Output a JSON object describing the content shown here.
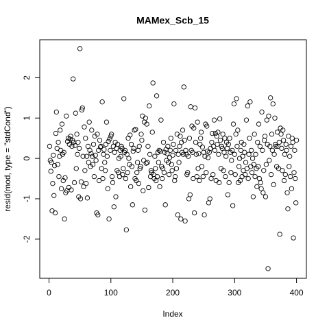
{
  "chart_data": {
    "type": "scatter",
    "title": "MAMex_Scb_15",
    "x_label": "Index",
    "y_label": "resid(mod, type = \"stdCond\")",
    "x": [
      1,
      2,
      3,
      4,
      5,
      6,
      7,
      8,
      9,
      10,
      11,
      12,
      13,
      14,
      15,
      16,
      17,
      18,
      19,
      20,
      21,
      22,
      23,
      24,
      25,
      26,
      27,
      28,
      29,
      30,
      31,
      32,
      33,
      34,
      35,
      36,
      37,
      38,
      39,
      40,
      41,
      42,
      43,
      44,
      45,
      46,
      47,
      48,
      49,
      50,
      51,
      52,
      53,
      54,
      55,
      56,
      57,
      58,
      59,
      60,
      61,
      62,
      63,
      64,
      65,
      66,
      67,
      68,
      69,
      70,
      71,
      72,
      73,
      74,
      75,
      76,
      77,
      78,
      79,
      80,
      81,
      82,
      83,
      84,
      85,
      86,
      87,
      88,
      89,
      90,
      91,
      92,
      93,
      94,
      95,
      96,
      97,
      98,
      99,
      100,
      101,
      102,
      103,
      104,
      105,
      106,
      107,
      108,
      109,
      110,
      111,
      112,
      113,
      114,
      115,
      116,
      117,
      118,
      119,
      120,
      121,
      122,
      123,
      124,
      125,
      126,
      127,
      128,
      129,
      130,
      131,
      132,
      133,
      134,
      135,
      136,
      137,
      138,
      139,
      140,
      141,
      142,
      143,
      144,
      145,
      146,
      147,
      148,
      149,
      150,
      151,
      152,
      153,
      154,
      155,
      156,
      157,
      158,
      159,
      160,
      161,
      162,
      163,
      164,
      165,
      166,
      167,
      168,
      169,
      170,
      171,
      172,
      173,
      174,
      175,
      176,
      177,
      178,
      179,
      180,
      181,
      182,
      183,
      184,
      185,
      186,
      187,
      188,
      189,
      190,
      191,
      192,
      193,
      194,
      195,
      196,
      197,
      198,
      199,
      200,
      201,
      202,
      203,
      204,
      205,
      206,
      207,
      208,
      209,
      210,
      211,
      212,
      213,
      214,
      215,
      216,
      217,
      218,
      219,
      220,
      221,
      222,
      223,
      224,
      225,
      226,
      227,
      228,
      229,
      230,
      231,
      232,
      233,
      234,
      235,
      236,
      237,
      238,
      239,
      240,
      241,
      242,
      243,
      244,
      245,
      246,
      247,
      248,
      249,
      250,
      251,
      252,
      253,
      254,
      255,
      256,
      257,
      258,
      259,
      260,
      261,
      262,
      263,
      264,
      265,
      266,
      267,
      268,
      269,
      270,
      271,
      272,
      273,
      274,
      275,
      276,
      277,
      278,
      279,
      280,
      281,
      282,
      283,
      284,
      285,
      286,
      287,
      288,
      289,
      290,
      291,
      292,
      293,
      294,
      295,
      296,
      297,
      298,
      299,
      300,
      301,
      302,
      303,
      304,
      305,
      306,
      307,
      308,
      309,
      310,
      311,
      312,
      313,
      314,
      315,
      316,
      317,
      318,
      319,
      320,
      321,
      322,
      323,
      324,
      325,
      326,
      327,
      328,
      329,
      330,
      331,
      332,
      333,
      334,
      335,
      336,
      337,
      338,
      339,
      340,
      341,
      342,
      343,
      344,
      345,
      346,
      347,
      348,
      349,
      350,
      351,
      352,
      353,
      354,
      355,
      356,
      357,
      358,
      359,
      360,
      361,
      362,
      363,
      364,
      365,
      366,
      367,
      368,
      369,
      370,
      371,
      372,
      373,
      374,
      375,
      376,
      377,
      378,
      379,
      380,
      381,
      382,
      383,
      384,
      385,
      386,
      387,
      388,
      389,
      390,
      391,
      392,
      393,
      394,
      395,
      396,
      397,
      398,
      399,
      400
    ],
    "values": [
      0.3,
      -0.05,
      -0.32,
      -0.1,
      -1.3,
      -0.62,
      0.08,
      -0.92,
      -0.18,
      -1.35,
      0.62,
      1.15,
      0.25,
      -0.15,
      0.4,
      -0.45,
      0.05,
      0.7,
      0.2,
      -0.75,
      0.85,
      0.1,
      -0.55,
      0.15,
      -1.5,
      -0.48,
      -0.85,
      1.05,
      -0.8,
      0.42,
      0.5,
      -0.72,
      0.35,
      0.48,
      0.55,
      -0.78,
      0.3,
      0.45,
      1.97,
      0.4,
      -0.6,
      0.32,
      1.12,
      -0.25,
      0.6,
      0.1,
      0.4,
      -0.95,
      0.25,
      2.72,
      -1.0,
      -0.58,
      1.2,
      1.25,
      0.05,
      -0.7,
      0.78,
      -0.3,
      0.5,
      -0.62,
      0.05,
      -0.98,
      0.3,
      -0.1,
      0.9,
      0.2,
      -0.2,
      0.12,
      0.7,
      0.05,
      -0.15,
      0.35,
      -0.45,
      0.55,
      0.08,
      -0.05,
      -1.35,
      0.6,
      -1.4,
      0.2,
      -0.55,
      0.45,
      0.28,
      0.3,
      -0.25,
      1.4,
      -0.5,
      0.1,
      0.22,
      -0.1,
      -0.3,
      0.35,
      0.9,
      0.05,
      -0.75,
      0.42,
      -1.5,
      0.48,
      0.2,
      0.55,
      0.6,
      -0.45,
      -0.6,
      0.3,
      -1.2,
      0.15,
      0.4,
      -0.95,
      0.25,
      -0.3,
      0.35,
      -0.35,
      0.0,
      -0.45,
      0.2,
      0.05,
      0.3,
      0.25,
      -0.4,
      -0.25,
      1.48,
      0.15,
      0.2,
      -0.5,
      -1.77,
      0.1,
      -0.35,
      0.5,
      0.0,
      -0.15,
      0.58,
      -0.7,
      0.35,
      -0.2,
      -1.15,
      0.18,
      0.25,
      0.7,
      -0.5,
      0.72,
      -0.55,
      -0.35,
      -0.1,
      0.2,
      -0.62,
      0.3,
      -0.25,
      -0.2,
      0.6,
      0.45,
      1.05,
      -0.8,
      -0.05,
      0.9,
      -1.28,
      1.0,
      -0.12,
      0.85,
      -0.1,
      0.3,
      -0.72,
      1.3,
      0.1,
      -0.45,
      -0.3,
      -0.35,
      0.65,
      1.87,
      -0.4,
      -0.5,
      0.05,
      -0.25,
      -0.55,
      1.55,
      -0.45,
      0.15,
      -0.1,
      0.2,
      -0.7,
      0.18,
      0.95,
      -0.2,
      -0.5,
      -0.25,
      0.4,
      -0.35,
      0.15,
      -1.15,
      0.22,
      -0.05,
      0.12,
      0.3,
      -0.1,
      -0.4,
      0.02,
      0.2,
      0.5,
      -0.15,
      -0.3,
      0.08,
      0.35,
      1.35,
      -0.55,
      -0.45,
      0.2,
      -0.25,
      0.6,
      -1.4,
      0.1,
      -0.1,
      0.3,
      0.55,
      -1.5,
      0.4,
      0.15,
      0.7,
      0.1,
      1.77,
      0.45,
      -1.55,
      0.2,
      0.1,
      -0.4,
      -0.35,
      0.05,
      -1.0,
      0.5,
      -0.9,
      1.28,
      0.2,
      0.8,
      0.15,
      -0.5,
      0.75,
      -1.35,
      1.25,
      0.4,
      0.1,
      -0.45,
      0.9,
      -0.25,
      0.12,
      -0.55,
      0.35,
      0.5,
      0.65,
      -0.2,
      0.28,
      -0.45,
      0.15,
      -1.4,
      0.05,
      0.85,
      -0.35,
      0.8,
      0.18,
      0.02,
      -1.1,
      0.15,
      -1.0,
      0.25,
      -0.5,
      0.4,
      0.62,
      -0.4,
      0.3,
      0.95,
      0.2,
      0.62,
      -0.55,
      0.55,
      0.35,
      0.65,
      0.1,
      -0.6,
      0.98,
      0.45,
      -0.25,
      0.3,
      0.25,
      0.6,
      -0.3,
      0.15,
      0.5,
      -0.45,
      0.05,
      0.4,
      0.25,
      -0.9,
      0.35,
      -0.6,
      0.5,
      0.15,
      -0.35,
      -0.05,
      0.2,
      -1.17,
      0.85,
      1.35,
      0.1,
      -0.4,
      0.6,
      1.48,
      0.3,
      0.7,
      -0.6,
      -0.2,
      0.0,
      -0.55,
      0.2,
      0.4,
      -0.45,
      0.05,
      -0.3,
      0.35,
      0.15,
      -0.4,
      -0.1,
      0.95,
      -0.25,
      1.3,
      -0.5,
      0.1,
      0.5,
      1.4,
      -0.2,
      0.2,
      -0.35,
      0.0,
      -0.95,
      -0.15,
      0.6,
      -0.45,
      0.1,
      -0.25,
      -0.7,
      0.4,
      -0.2,
      0.85,
      -0.5,
      0.3,
      -0.6,
      -0.75,
      1.15,
      0.2,
      -0.85,
      -0.3,
      0.45,
      0.55,
      -0.95,
      -0.15,
      0.95,
      0.35,
      -2.73,
      1.05,
      -0.05,
      0.3,
      1.5,
      -0.4,
      0.6,
      0.2,
      1.35,
      -0.65,
      0.1,
      1.0,
      0.35,
      0.3,
      -0.2,
      0.65,
      0.3,
      -0.25,
      0.4,
      -1.88,
      0.75,
      0.6,
      0.25,
      -0.3,
      0.7,
      0.45,
      -0.55,
      0.1,
      -0.4,
      0.35,
      0.2,
      -0.85,
      -1.25,
      0.55,
      -0.2,
      0.05,
      -0.45,
      0.3,
      -0.75,
      0.5,
      0.4,
      -1.97,
      -0.35,
      0.2,
      -0.5,
      -1.1,
      0.45
    ],
    "color": "#000000",
    "xlim": [
      -14.96,
      415.96
    ],
    "xticks": [
      0,
      100,
      200,
      300,
      400
    ],
    "ylim": [
      -2.97,
      2.94
    ],
    "yticks": [
      -2,
      -1,
      0,
      1,
      2
    ]
  }
}
